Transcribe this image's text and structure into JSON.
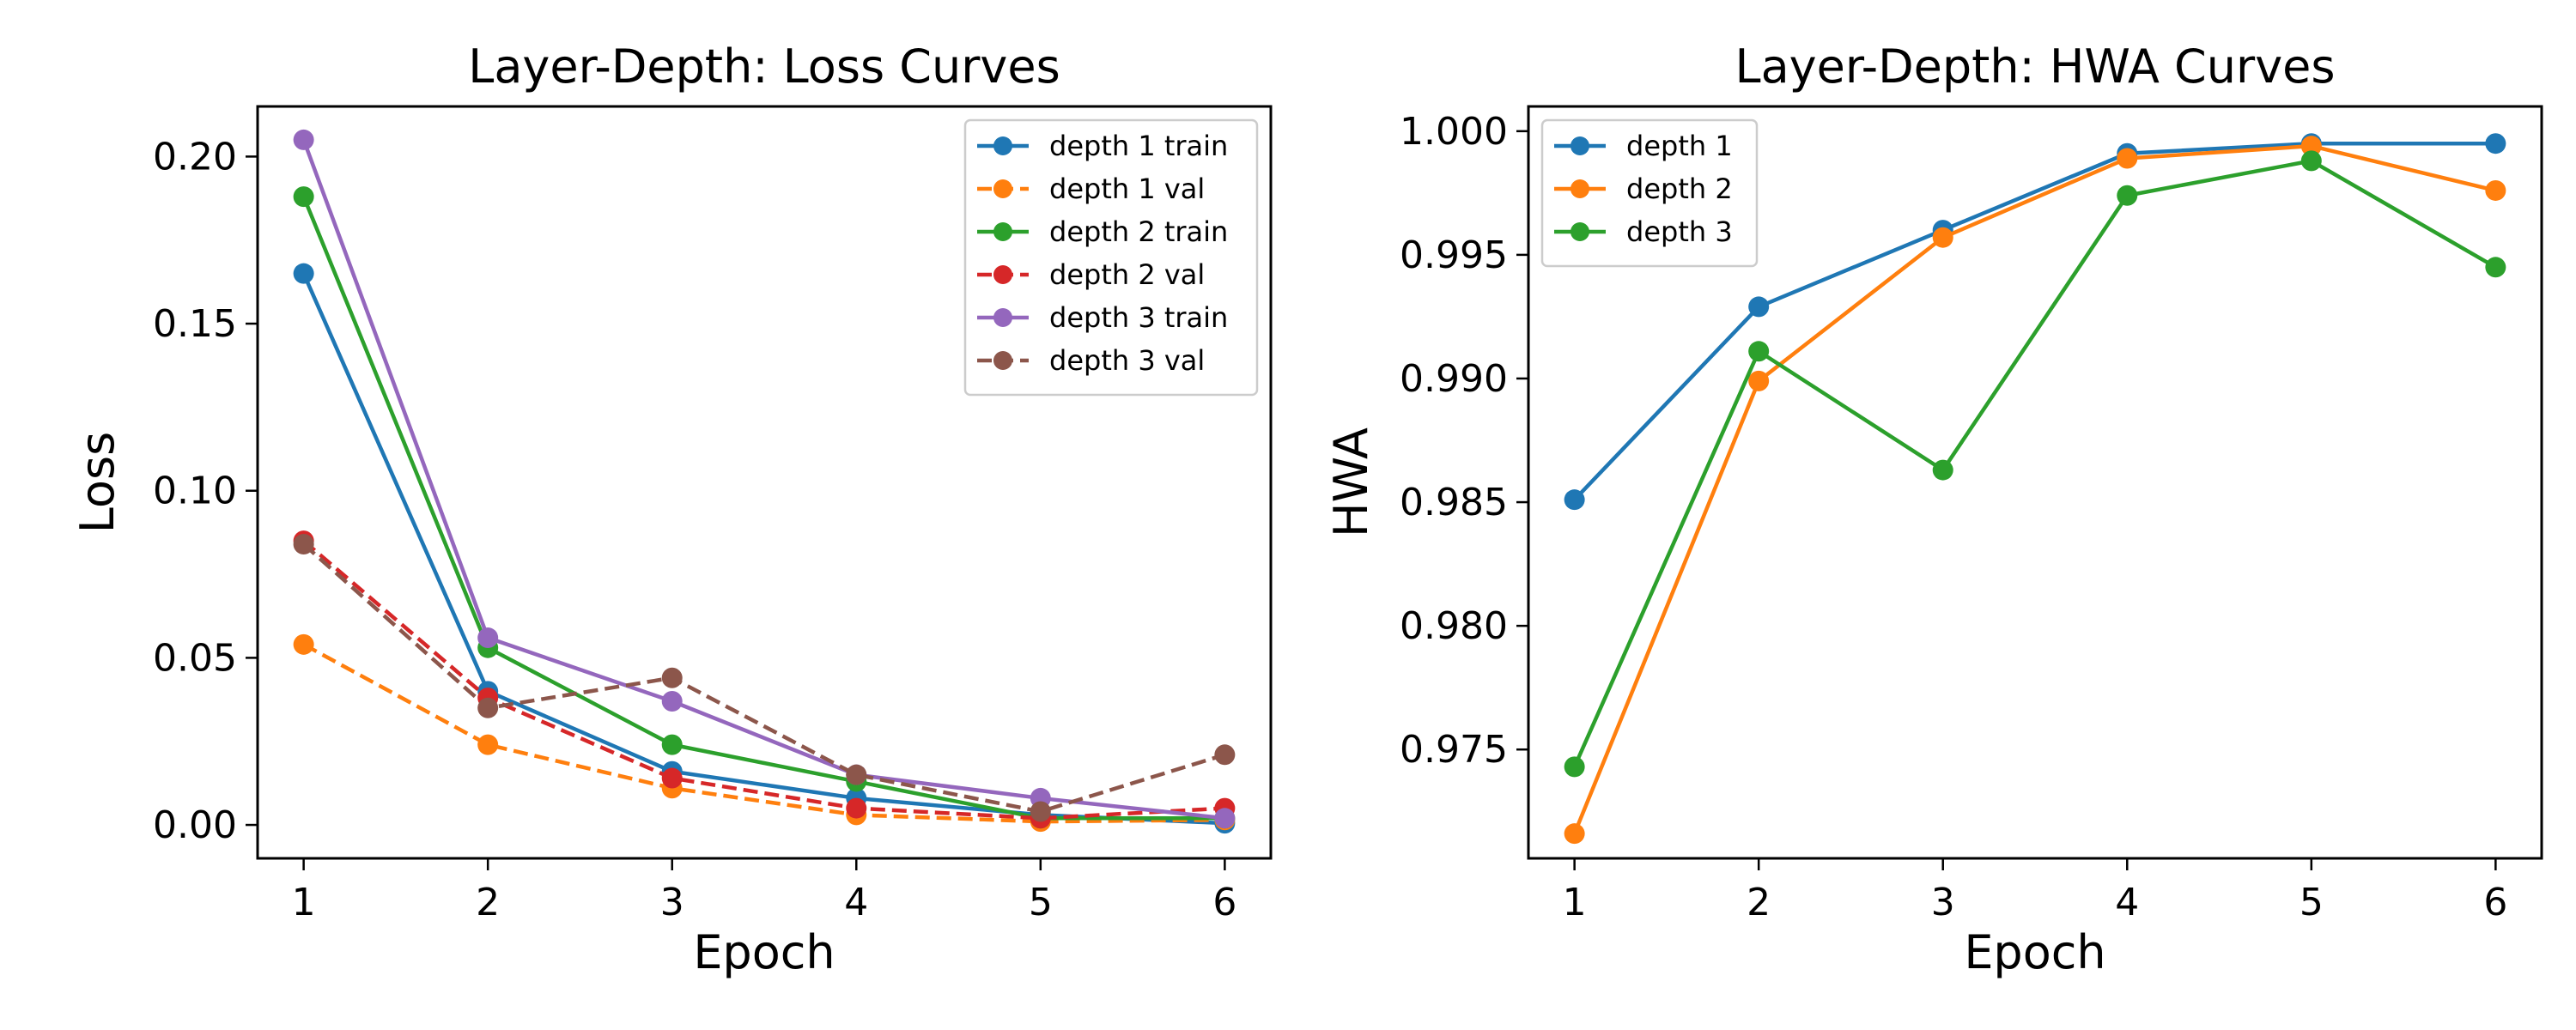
{
  "chart_data": [
    {
      "type": "line",
      "title": "Layer-Depth: Loss Curves",
      "xlabel": "Epoch",
      "ylabel": "Loss",
      "x": [
        1,
        2,
        3,
        4,
        5,
        6
      ],
      "xticks": [
        "1",
        "2",
        "3",
        "4",
        "5",
        "6"
      ],
      "xlim": [
        0.75,
        6.25
      ],
      "ylim": [
        -0.01,
        0.215
      ],
      "yticks": [
        "0.00",
        "0.05",
        "0.10",
        "0.15",
        "0.20"
      ],
      "ytick_values": [
        0.0,
        0.05,
        0.1,
        0.15,
        0.2
      ],
      "grid": false,
      "legend_position": "top-right",
      "series": [
        {
          "name": "depth 1 train",
          "color": "#1f77b4",
          "linestyle": "solid",
          "values": [
            0.165,
            0.04,
            0.016,
            0.008,
            0.003,
            0.0005
          ]
        },
        {
          "name": "depth 1 val",
          "color": "#ff7f0e",
          "linestyle": "dashed",
          "values": [
            0.054,
            0.024,
            0.011,
            0.003,
            0.001,
            0.0015
          ]
        },
        {
          "name": "depth 2 train",
          "color": "#2ca02c",
          "linestyle": "solid",
          "values": [
            0.188,
            0.053,
            0.024,
            0.013,
            0.002,
            0.002
          ]
        },
        {
          "name": "depth 2 val",
          "color": "#d62728",
          "linestyle": "dashed",
          "values": [
            0.085,
            0.038,
            0.014,
            0.005,
            0.002,
            0.005
          ]
        },
        {
          "name": "depth 3 train",
          "color": "#9467bd",
          "linestyle": "solid",
          "values": [
            0.205,
            0.056,
            0.037,
            0.015,
            0.008,
            0.002
          ]
        },
        {
          "name": "depth 3 val",
          "color": "#8c564b",
          "linestyle": "dashed",
          "values": [
            0.084,
            0.035,
            0.044,
            0.015,
            0.004,
            0.021
          ]
        }
      ]
    },
    {
      "type": "line",
      "title": "Layer-Depth: HWA Curves",
      "xlabel": "Epoch",
      "ylabel": "HWA",
      "x": [
        1,
        2,
        3,
        4,
        5,
        6
      ],
      "xticks": [
        "1",
        "2",
        "3",
        "4",
        "5",
        "6"
      ],
      "xlim": [
        0.75,
        6.25
      ],
      "ylim": [
        0.9706,
        1.001
      ],
      "yticks": [
        "0.975",
        "0.980",
        "0.985",
        "0.990",
        "0.995",
        "1.000"
      ],
      "ytick_values": [
        0.975,
        0.98,
        0.985,
        0.99,
        0.995,
        1.0
      ],
      "grid": false,
      "legend_position": "top-left",
      "series": [
        {
          "name": "depth 1",
          "color": "#1f77b4",
          "linestyle": "solid",
          "values": [
            0.9851,
            0.9929,
            0.996,
            0.9991,
            0.9995,
            0.9995
          ]
        },
        {
          "name": "depth 2",
          "color": "#ff7f0e",
          "linestyle": "solid",
          "values": [
            0.9716,
            0.9899,
            0.9957,
            0.9989,
            0.9994,
            0.9976
          ]
        },
        {
          "name": "depth 3",
          "color": "#2ca02c",
          "linestyle": "solid",
          "values": [
            0.9743,
            0.9911,
            0.9863,
            0.9974,
            0.9988,
            0.9945
          ]
        }
      ]
    }
  ]
}
